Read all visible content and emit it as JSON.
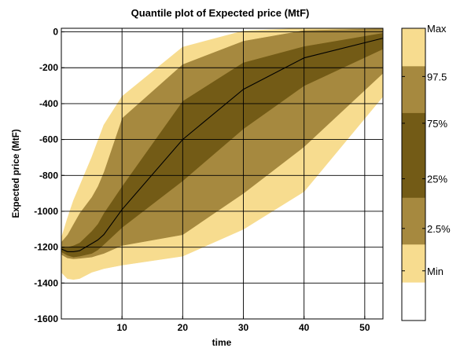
{
  "chart_data": {
    "type": "area",
    "title": "Quantile plot of Expected price (MtF)",
    "xlabel": "time",
    "ylabel": "Expected price (MtF)",
    "xlim": [
      0,
      53
    ],
    "ylim": [
      -1600,
      20
    ],
    "x_ticks": [
      10,
      20,
      30,
      40,
      50
    ],
    "y_ticks": [
      0,
      -200,
      -400,
      -600,
      -800,
      -1000,
      -1200,
      -1400,
      -1600
    ],
    "grid": true,
    "bands": [
      {
        "name": "Min-2.5%",
        "color": "#f7dc8f",
        "x": [
          0,
          1,
          2,
          3,
          5,
          6,
          7,
          10,
          20,
          30,
          40,
          53
        ],
        "upper": [
          -1240,
          -1260,
          -1265,
          -1262,
          -1255,
          -1245,
          -1235,
          -1190,
          -1130,
          -900,
          -640,
          -230
        ],
        "lower": [
          -1340,
          -1375,
          -1380,
          -1375,
          -1340,
          -1330,
          -1320,
          -1300,
          -1250,
          -1100,
          -890,
          -360
        ]
      },
      {
        "name": "2.5%-25%",
        "color": "#a6893f",
        "x": [
          0,
          1,
          2,
          3,
          5,
          6,
          7,
          10,
          20,
          30,
          40,
          53
        ],
        "upper": [
          -1225,
          -1245,
          -1255,
          -1250,
          -1235,
          -1215,
          -1185,
          -1090,
          -830,
          -540,
          -300,
          -95
        ],
        "lower": [
          -1240,
          -1260,
          -1265,
          -1262,
          -1255,
          -1245,
          -1235,
          -1190,
          -1130,
          -900,
          -640,
          -230
        ]
      },
      {
        "name": "25%-75%",
        "color": "#735b16",
        "x": [
          0,
          1,
          2,
          3,
          5,
          6,
          7,
          10,
          20,
          30,
          40,
          53
        ],
        "upper": [
          -1200,
          -1200,
          -1190,
          -1175,
          -1110,
          -1070,
          -1010,
          -860,
          -385,
          -170,
          -80,
          -5
        ],
        "lower": [
          -1225,
          -1245,
          -1255,
          -1250,
          -1235,
          -1215,
          -1185,
          -1090,
          -830,
          -540,
          -300,
          -95
        ]
      },
      {
        "name": "75%-97.5%",
        "color": "#a6893f",
        "x": [
          0,
          1,
          2,
          3,
          5,
          6,
          7,
          10,
          20,
          30,
          40,
          53
        ],
        "upper": [
          -1170,
          -1130,
          -1070,
          -1010,
          -920,
          -860,
          -780,
          -480,
          -180,
          -50,
          10,
          20
        ],
        "lower": [
          -1200,
          -1200,
          -1190,
          -1175,
          -1110,
          -1070,
          -1010,
          -860,
          -385,
          -170,
          -80,
          -5
        ]
      },
      {
        "name": "97.5%-Max",
        "color": "#f7dc8f",
        "x": [
          0,
          1,
          2,
          3,
          5,
          6,
          7,
          10,
          20,
          30,
          40,
          53
        ],
        "upper": [
          -1150,
          -1040,
          -940,
          -860,
          -700,
          -610,
          -520,
          -360,
          -85,
          5,
          20,
          20
        ],
        "lower": [
          -1170,
          -1130,
          -1070,
          -1010,
          -920,
          -860,
          -780,
          -480,
          -180,
          -50,
          10,
          20
        ]
      }
    ],
    "median": {
      "x": [
        0,
        1,
        2,
        3,
        4,
        5,
        6,
        7,
        10,
        20,
        30,
        40,
        53
      ],
      "y": [
        -1210,
        -1225,
        -1225,
        -1220,
        -1200,
        -1180,
        -1160,
        -1130,
        -990,
        -600,
        -320,
        -145,
        -35
      ]
    },
    "colorbar": {
      "labels": [
        "Max",
        "97.5",
        "75%",
        "25%",
        "2.5%",
        "Min"
      ],
      "segments": [
        {
          "from": 0,
          "to": 0.13,
          "color": "#f7dc8f"
        },
        {
          "from": 0.13,
          "to": 0.29,
          "color": "#a6893f"
        },
        {
          "from": 0.29,
          "to": 0.58,
          "color": "#735b16"
        },
        {
          "from": 0.58,
          "to": 0.74,
          "color": "#a6893f"
        },
        {
          "from": 0.74,
          "to": 0.87,
          "color": "#f7dc8f"
        },
        {
          "from": 0.87,
          "to": 1.0,
          "color": "#ffffff"
        }
      ],
      "label_levels": [
        0,
        0.165,
        0.325,
        0.515,
        0.685,
        0.83
      ]
    },
    "colors": {
      "light": "#f7dc8f",
      "mid": "#a6893f",
      "dark": "#735b16",
      "line": "#000000"
    }
  }
}
